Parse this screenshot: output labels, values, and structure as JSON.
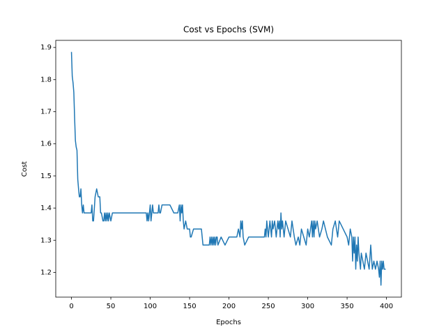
{
  "chart_data": {
    "type": "line",
    "title": "Cost vs Epochs (SVM)",
    "x_label": "Epochs",
    "y_label": "Cost",
    "x": [
      0,
      1,
      2,
      3,
      4,
      5,
      6,
      7,
      8,
      9,
      10,
      11,
      12,
      13,
      14,
      15,
      16,
      20,
      25,
      26,
      27,
      28,
      30,
      32,
      34,
      36,
      37,
      38,
      40,
      41,
      42,
      43,
      44,
      45,
      46,
      47,
      48,
      50,
      52,
      55,
      60,
      70,
      80,
      90,
      95,
      96,
      97,
      98,
      100,
      101,
      102,
      103,
      104,
      105,
      110,
      111,
      112,
      113,
      115,
      120,
      125,
      130,
      135,
      137,
      138,
      139,
      140,
      141,
      142,
      143,
      145,
      147,
      150,
      151,
      152,
      155,
      160,
      165,
      166,
      167,
      170,
      175,
      176,
      177,
      178,
      179,
      180,
      181,
      182,
      183,
      184,
      185,
      186,
      190,
      195,
      200,
      205,
      210,
      212,
      214,
      215,
      216,
      217,
      218,
      220,
      225,
      230,
      240,
      245,
      246,
      247,
      248,
      250,
      252,
      253,
      254,
      255,
      256,
      258,
      260,
      262,
      263,
      264,
      265,
      266,
      267,
      268,
      270,
      272,
      275,
      278,
      280,
      283,
      285,
      288,
      290,
      292,
      295,
      298,
      300,
      302,
      305,
      306,
      307,
      308,
      309,
      310,
      312,
      315,
      318,
      320,
      325,
      330,
      332,
      335,
      338,
      340,
      345,
      350,
      352,
      354,
      356,
      357,
      358,
      359,
      360,
      361,
      362,
      363,
      364,
      365,
      366,
      367,
      368,
      370,
      372,
      374,
      376,
      378,
      380,
      382,
      384,
      386,
      388,
      390,
      391,
      392,
      393,
      394,
      395,
      396,
      397,
      398,
      399
    ],
    "series": [
      {
        "name": "Cost",
        "color": "#1f77b4",
        "values": [
          1.886,
          1.81,
          1.79,
          1.76,
          1.68,
          1.61,
          1.59,
          1.58,
          1.49,
          1.46,
          1.435,
          1.435,
          1.46,
          1.41,
          1.385,
          1.41,
          1.385,
          1.385,
          1.385,
          1.41,
          1.36,
          1.36,
          1.435,
          1.46,
          1.435,
          1.435,
          1.385,
          1.385,
          1.36,
          1.36,
          1.385,
          1.36,
          1.385,
          1.36,
          1.385,
          1.36,
          1.385,
          1.36,
          1.385,
          1.385,
          1.385,
          1.385,
          1.385,
          1.385,
          1.385,
          1.36,
          1.385,
          1.36,
          1.41,
          1.36,
          1.385,
          1.41,
          1.385,
          1.385,
          1.385,
          1.41,
          1.385,
          1.385,
          1.41,
          1.41,
          1.41,
          1.385,
          1.385,
          1.41,
          1.36,
          1.41,
          1.385,
          1.41,
          1.36,
          1.335,
          1.36,
          1.335,
          1.335,
          1.31,
          1.31,
          1.335,
          1.335,
          1.335,
          1.31,
          1.285,
          1.285,
          1.285,
          1.31,
          1.285,
          1.31,
          1.285,
          1.31,
          1.285,
          1.31,
          1.285,
          1.31,
          1.31,
          1.285,
          1.31,
          1.285,
          1.31,
          1.31,
          1.31,
          1.335,
          1.31,
          1.36,
          1.335,
          1.36,
          1.31,
          1.285,
          1.31,
          1.31,
          1.31,
          1.31,
          1.335,
          1.31,
          1.36,
          1.31,
          1.36,
          1.335,
          1.31,
          1.36,
          1.335,
          1.36,
          1.31,
          1.36,
          1.335,
          1.36,
          1.31,
          1.385,
          1.335,
          1.36,
          1.31,
          1.36,
          1.335,
          1.31,
          1.36,
          1.31,
          1.285,
          1.31,
          1.285,
          1.335,
          1.31,
          1.285,
          1.335,
          1.31,
          1.36,
          1.31,
          1.36,
          1.31,
          1.36,
          1.335,
          1.36,
          1.31,
          1.335,
          1.36,
          1.31,
          1.285,
          1.335,
          1.36,
          1.31,
          1.36,
          1.335,
          1.31,
          1.285,
          1.335,
          1.31,
          1.235,
          1.31,
          1.26,
          1.31,
          1.21,
          1.285,
          1.235,
          1.31,
          1.26,
          1.235,
          1.21,
          1.26,
          1.235,
          1.21,
          1.26,
          1.235,
          1.21,
          1.285,
          1.21,
          1.235,
          1.21,
          1.235,
          1.21,
          1.185,
          1.235,
          1.16,
          1.235,
          1.21,
          1.235,
          1.21,
          1.21,
          1.21
        ]
      }
    ],
    "xlim": [
      -19.95,
      418.95
    ],
    "ylim": [
      1.123,
      1.922
    ],
    "xticks": [
      0,
      50,
      100,
      150,
      200,
      250,
      300,
      350,
      400
    ],
    "yticks": [
      1.2,
      1.3,
      1.4,
      1.5,
      1.6,
      1.7,
      1.8,
      1.9
    ]
  }
}
